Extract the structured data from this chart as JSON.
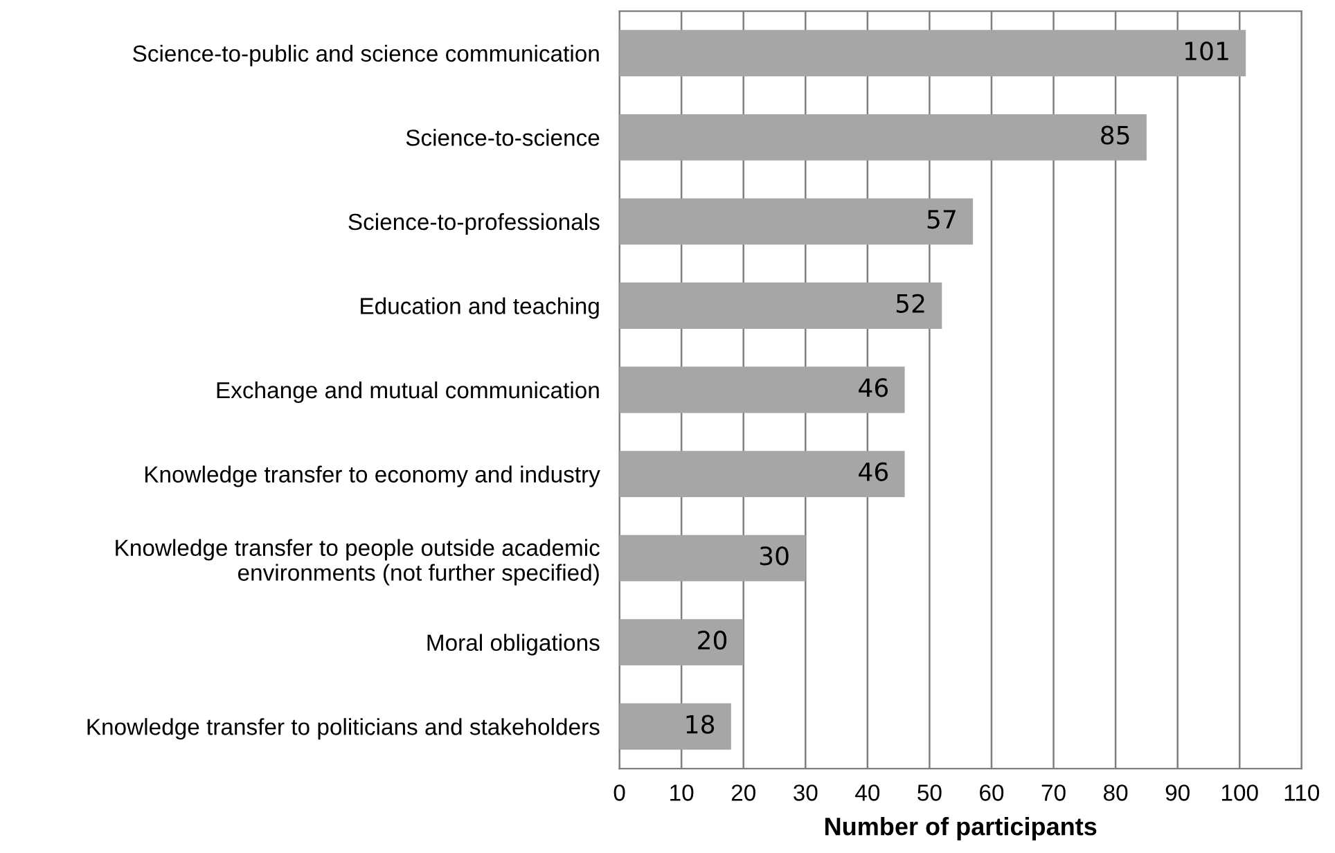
{
  "chart_data": {
    "type": "bar",
    "orientation": "horizontal",
    "xlabel": "Number of participants",
    "categories": [
      "Science-to-public and science communication",
      "Science-to-science",
      "Science-to-professionals",
      "Education and teaching",
      "Exchange and mutual communication",
      "Knowledge transfer to economy and industry",
      "Knowledge transfer to people outside academic\nenvironments (not further specified)",
      "Moral obligations",
      "Knowledge transfer to politicians and stakeholders"
    ],
    "values": [
      101,
      85,
      57,
      52,
      46,
      46,
      30,
      20,
      18
    ],
    "color": "#a6a6a6",
    "xlim": [
      0,
      110
    ],
    "xticks": [
      0,
      10,
      20,
      30,
      40,
      50,
      60,
      70,
      80,
      90,
      100,
      110
    ],
    "grid": "x",
    "data_labels": true
  }
}
